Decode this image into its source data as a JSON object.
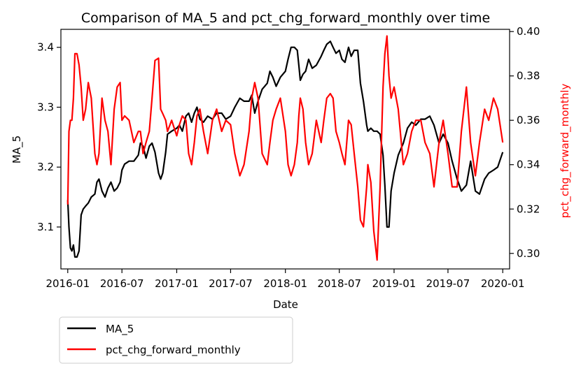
{
  "chart_data": {
    "type": "line",
    "title": "Comparison of MA_5 and pct_chg_forward_monthly over time",
    "xlabel": "Date",
    "ylabel_left": "MA_5",
    "ylabel_right": "pct_chg_forward_monthly",
    "x_ticks": [
      "2016-01",
      "2016-07",
      "2017-01",
      "2017-07",
      "2018-01",
      "2018-07",
      "2019-01",
      "2019-07",
      "2020-01"
    ],
    "x_range": [
      "2015-12-09",
      "2020-01-24"
    ],
    "y_left_ticks": [
      "3.1",
      "3.2",
      "3.3",
      "3.4"
    ],
    "y_left_range": [
      3.03,
      3.43
    ],
    "y_right_ticks": [
      "0.30",
      "0.32",
      "0.34",
      "0.36",
      "0.38",
      "0.40"
    ],
    "y_right_range": [
      0.293,
      0.401
    ],
    "grid": false,
    "legend": {
      "placement": "below-left",
      "entries": [
        "MA_5",
        "pct_chg_forward_monthly"
      ]
    },
    "series": [
      {
        "name": "MA_5",
        "axis": "left",
        "color": "#000000",
        "points": [
          [
            "2016-01-01",
            3.145
          ],
          [
            "2016-01-05",
            3.1
          ],
          [
            "2016-01-10",
            3.065
          ],
          [
            "2016-01-15",
            3.06
          ],
          [
            "2016-01-20",
            3.07
          ],
          [
            "2016-01-25",
            3.05
          ],
          [
            "2016-02-01",
            3.05
          ],
          [
            "2016-02-08",
            3.06
          ],
          [
            "2016-02-15",
            3.12
          ],
          [
            "2016-02-22",
            3.13
          ],
          [
            "2016-03-01",
            3.135
          ],
          [
            "2016-03-10",
            3.14
          ],
          [
            "2016-03-20",
            3.15
          ],
          [
            "2016-04-01",
            3.155
          ],
          [
            "2016-04-08",
            3.175
          ],
          [
            "2016-04-15",
            3.18
          ],
          [
            "2016-04-25",
            3.16
          ],
          [
            "2016-05-05",
            3.15
          ],
          [
            "2016-05-15",
            3.165
          ],
          [
            "2016-05-25",
            3.175
          ],
          [
            "2016-06-05",
            3.16
          ],
          [
            "2016-06-15",
            3.165
          ],
          [
            "2016-06-25",
            3.175
          ],
          [
            "2016-07-01",
            3.195
          ],
          [
            "2016-07-10",
            3.205
          ],
          [
            "2016-07-25",
            3.21
          ],
          [
            "2016-08-10",
            3.21
          ],
          [
            "2016-08-25",
            3.22
          ],
          [
            "2016-09-01",
            3.24
          ],
          [
            "2016-09-10",
            3.235
          ],
          [
            "2016-09-20",
            3.215
          ],
          [
            "2016-10-01",
            3.235
          ],
          [
            "2016-10-10",
            3.24
          ],
          [
            "2016-10-20",
            3.225
          ],
          [
            "2016-11-01",
            3.19
          ],
          [
            "2016-11-08",
            3.18
          ],
          [
            "2016-11-15",
            3.19
          ],
          [
            "2016-11-25",
            3.225
          ],
          [
            "2016-12-01",
            3.255
          ],
          [
            "2016-12-15",
            3.26
          ],
          [
            "2017-01-01",
            3.265
          ],
          [
            "2017-01-10",
            3.27
          ],
          [
            "2017-01-20",
            3.26
          ],
          [
            "2017-02-01",
            3.285
          ],
          [
            "2017-02-10",
            3.29
          ],
          [
            "2017-02-20",
            3.275
          ],
          [
            "2017-03-01",
            3.29
          ],
          [
            "2017-03-10",
            3.3
          ],
          [
            "2017-03-20",
            3.28
          ],
          [
            "2017-04-01",
            3.275
          ],
          [
            "2017-04-15",
            3.285
          ],
          [
            "2017-05-01",
            3.28
          ],
          [
            "2017-05-15",
            3.29
          ],
          [
            "2017-06-01",
            3.29
          ],
          [
            "2017-06-15",
            3.28
          ],
          [
            "2017-07-01",
            3.285
          ],
          [
            "2017-07-15",
            3.3
          ],
          [
            "2017-08-01",
            3.315
          ],
          [
            "2017-08-15",
            3.31
          ],
          [
            "2017-09-01",
            3.31
          ],
          [
            "2017-09-10",
            3.32
          ],
          [
            "2017-09-20",
            3.29
          ],
          [
            "2017-10-01",
            3.31
          ],
          [
            "2017-10-15",
            3.33
          ],
          [
            "2017-11-01",
            3.34
          ],
          [
            "2017-11-10",
            3.36
          ],
          [
            "2017-11-20",
            3.35
          ],
          [
            "2017-12-01",
            3.335
          ],
          [
            "2017-12-15",
            3.35
          ],
          [
            "2018-01-01",
            3.36
          ],
          [
            "2018-01-10",
            3.38
          ],
          [
            "2018-01-20",
            3.4
          ],
          [
            "2018-01-31",
            3.4
          ],
          [
            "2018-02-10",
            3.395
          ],
          [
            "2018-02-15",
            3.37
          ],
          [
            "2018-02-20",
            3.345
          ],
          [
            "2018-03-01",
            3.355
          ],
          [
            "2018-03-10",
            3.36
          ],
          [
            "2018-03-20",
            3.38
          ],
          [
            "2018-04-01",
            3.365
          ],
          [
            "2018-04-15",
            3.37
          ],
          [
            "2018-05-01",
            3.385
          ],
          [
            "2018-05-10",
            3.395
          ],
          [
            "2018-05-20",
            3.405
          ],
          [
            "2018-06-01",
            3.41
          ],
          [
            "2018-06-10",
            3.4
          ],
          [
            "2018-06-20",
            3.39
          ],
          [
            "2018-07-01",
            3.395
          ],
          [
            "2018-07-10",
            3.38
          ],
          [
            "2018-07-20",
            3.375
          ],
          [
            "2018-08-01",
            3.4
          ],
          [
            "2018-08-10",
            3.385
          ],
          [
            "2018-08-20",
            3.395
          ],
          [
            "2018-09-01",
            3.395
          ],
          [
            "2018-09-10",
            3.34
          ],
          [
            "2018-09-20",
            3.31
          ],
          [
            "2018-10-01",
            3.27
          ],
          [
            "2018-10-05",
            3.26
          ],
          [
            "2018-10-15",
            3.265
          ],
          [
            "2018-10-25",
            3.26
          ],
          [
            "2018-11-05",
            3.26
          ],
          [
            "2018-11-15",
            3.255
          ],
          [
            "2018-11-25",
            3.22
          ],
          [
            "2018-12-01",
            3.17
          ],
          [
            "2018-12-08",
            3.1
          ],
          [
            "2018-12-15",
            3.1
          ],
          [
            "2018-12-22",
            3.16
          ],
          [
            "2019-01-01",
            3.19
          ],
          [
            "2019-01-15",
            3.22
          ],
          [
            "2019-02-01",
            3.24
          ],
          [
            "2019-02-15",
            3.265
          ],
          [
            "2019-03-01",
            3.275
          ],
          [
            "2019-03-15",
            3.27
          ],
          [
            "2019-04-01",
            3.28
          ],
          [
            "2019-04-15",
            3.28
          ],
          [
            "2019-05-01",
            3.285
          ],
          [
            "2019-05-15",
            3.27
          ],
          [
            "2019-06-01",
            3.24
          ],
          [
            "2019-06-15",
            3.255
          ],
          [
            "2019-07-01",
            3.24
          ],
          [
            "2019-07-15",
            3.21
          ],
          [
            "2019-08-01",
            3.18
          ],
          [
            "2019-08-15",
            3.16
          ],
          [
            "2019-09-01",
            3.17
          ],
          [
            "2019-09-15",
            3.21
          ],
          [
            "2019-10-01",
            3.16
          ],
          [
            "2019-10-15",
            3.155
          ],
          [
            "2019-11-01",
            3.18
          ],
          [
            "2019-11-15",
            3.19
          ],
          [
            "2019-12-01",
            3.195
          ],
          [
            "2019-12-15",
            3.2
          ],
          [
            "2020-01-01",
            3.225
          ]
        ]
      },
      {
        "name": "pct_chg_forward_monthly",
        "axis": "right",
        "color": "#ff0000",
        "points": [
          [
            "2016-01-01",
            0.322
          ],
          [
            "2016-01-05",
            0.355
          ],
          [
            "2016-01-10",
            0.36
          ],
          [
            "2016-01-15",
            0.36
          ],
          [
            "2016-01-20",
            0.37
          ],
          [
            "2016-01-25",
            0.39
          ],
          [
            "2016-02-01",
            0.39
          ],
          [
            "2016-02-08",
            0.385
          ],
          [
            "2016-02-15",
            0.375
          ],
          [
            "2016-02-22",
            0.36
          ],
          [
            "2016-03-01",
            0.365
          ],
          [
            "2016-03-10",
            0.377
          ],
          [
            "2016-03-20",
            0.37
          ],
          [
            "2016-04-01",
            0.345
          ],
          [
            "2016-04-08",
            0.34
          ],
          [
            "2016-04-15",
            0.345
          ],
          [
            "2016-04-25",
            0.37
          ],
          [
            "2016-05-05",
            0.36
          ],
          [
            "2016-05-15",
            0.355
          ],
          [
            "2016-05-25",
            0.34
          ],
          [
            "2016-06-05",
            0.365
          ],
          [
            "2016-06-15",
            0.375
          ],
          [
            "2016-06-25",
            0.377
          ],
          [
            "2016-07-01",
            0.36
          ],
          [
            "2016-07-10",
            0.362
          ],
          [
            "2016-07-25",
            0.36
          ],
          [
            "2016-08-10",
            0.35
          ],
          [
            "2016-08-25",
            0.355
          ],
          [
            "2016-09-01",
            0.355
          ],
          [
            "2016-09-10",
            0.345
          ],
          [
            "2016-09-20",
            0.35
          ],
          [
            "2016-10-01",
            0.355
          ],
          [
            "2016-10-10",
            0.37
          ],
          [
            "2016-10-20",
            0.387
          ],
          [
            "2016-11-01",
            0.388
          ],
          [
            "2016-11-08",
            0.365
          ],
          [
            "2016-11-15",
            0.363
          ],
          [
            "2016-11-25",
            0.36
          ],
          [
            "2016-12-01",
            0.355
          ],
          [
            "2016-12-15",
            0.36
          ],
          [
            "2017-01-01",
            0.353
          ],
          [
            "2017-01-10",
            0.358
          ],
          [
            "2017-01-20",
            0.362
          ],
          [
            "2017-02-01",
            0.36
          ],
          [
            "2017-02-10",
            0.345
          ],
          [
            "2017-02-20",
            0.34
          ],
          [
            "2017-03-01",
            0.35
          ],
          [
            "2017-03-10",
            0.362
          ],
          [
            "2017-03-20",
            0.365
          ],
          [
            "2017-04-01",
            0.355
          ],
          [
            "2017-04-15",
            0.345
          ],
          [
            "2017-05-01",
            0.36
          ],
          [
            "2017-05-15",
            0.365
          ],
          [
            "2017-06-01",
            0.355
          ],
          [
            "2017-06-15",
            0.36
          ],
          [
            "2017-07-01",
            0.358
          ],
          [
            "2017-07-15",
            0.345
          ],
          [
            "2017-08-01",
            0.335
          ],
          [
            "2017-08-15",
            0.34
          ],
          [
            "2017-09-01",
            0.355
          ],
          [
            "2017-09-10",
            0.37
          ],
          [
            "2017-09-20",
            0.377
          ],
          [
            "2017-10-01",
            0.37
          ],
          [
            "2017-10-15",
            0.345
          ],
          [
            "2017-11-01",
            0.34
          ],
          [
            "2017-11-10",
            0.35
          ],
          [
            "2017-11-20",
            0.36
          ],
          [
            "2017-12-01",
            0.365
          ],
          [
            "2017-12-15",
            0.37
          ],
          [
            "2018-01-01",
            0.355
          ],
          [
            "2018-01-10",
            0.34
          ],
          [
            "2018-01-20",
            0.335
          ],
          [
            "2018-01-31",
            0.34
          ],
          [
            "2018-02-10",
            0.35
          ],
          [
            "2018-02-15",
            0.362
          ],
          [
            "2018-02-20",
            0.37
          ],
          [
            "2018-03-01",
            0.365
          ],
          [
            "2018-03-10",
            0.35
          ],
          [
            "2018-03-20",
            0.34
          ],
          [
            "2018-04-01",
            0.345
          ],
          [
            "2018-04-15",
            0.36
          ],
          [
            "2018-05-01",
            0.35
          ],
          [
            "2018-05-10",
            0.36
          ],
          [
            "2018-05-20",
            0.37
          ],
          [
            "2018-06-01",
            0.372
          ],
          [
            "2018-06-10",
            0.37
          ],
          [
            "2018-06-20",
            0.355
          ],
          [
            "2018-07-01",
            0.35
          ],
          [
            "2018-07-10",
            0.345
          ],
          [
            "2018-07-20",
            0.34
          ],
          [
            "2018-08-01",
            0.36
          ],
          [
            "2018-08-10",
            0.358
          ],
          [
            "2018-08-20",
            0.345
          ],
          [
            "2018-09-01",
            0.33
          ],
          [
            "2018-09-10",
            0.315
          ],
          [
            "2018-09-20",
            0.312
          ],
          [
            "2018-10-01",
            0.33
          ],
          [
            "2018-10-05",
            0.34
          ],
          [
            "2018-10-15",
            0.332
          ],
          [
            "2018-10-25",
            0.31
          ],
          [
            "2018-11-05",
            0.297
          ],
          [
            "2018-11-15",
            0.33
          ],
          [
            "2018-11-25",
            0.375
          ],
          [
            "2018-12-01",
            0.39
          ],
          [
            "2018-12-08",
            0.398
          ],
          [
            "2018-12-15",
            0.38
          ],
          [
            "2018-12-22",
            0.37
          ],
          [
            "2019-01-01",
            0.375
          ],
          [
            "2019-01-15",
            0.365
          ],
          [
            "2019-02-01",
            0.34
          ],
          [
            "2019-02-15",
            0.345
          ],
          [
            "2019-03-01",
            0.355
          ],
          [
            "2019-03-15",
            0.36
          ],
          [
            "2019-04-01",
            0.36
          ],
          [
            "2019-04-15",
            0.35
          ],
          [
            "2019-05-01",
            0.345
          ],
          [
            "2019-05-15",
            0.33
          ],
          [
            "2019-06-01",
            0.35
          ],
          [
            "2019-06-15",
            0.36
          ],
          [
            "2019-07-01",
            0.345
          ],
          [
            "2019-07-15",
            0.33
          ],
          [
            "2019-08-01",
            0.33
          ],
          [
            "2019-08-15",
            0.355
          ],
          [
            "2019-09-01",
            0.375
          ],
          [
            "2019-09-15",
            0.35
          ],
          [
            "2019-10-01",
            0.335
          ],
          [
            "2019-10-15",
            0.35
          ],
          [
            "2019-11-01",
            0.365
          ],
          [
            "2019-11-15",
            0.36
          ],
          [
            "2019-12-01",
            0.37
          ],
          [
            "2019-12-15",
            0.365
          ],
          [
            "2020-01-01",
            0.35
          ]
        ]
      }
    ]
  }
}
